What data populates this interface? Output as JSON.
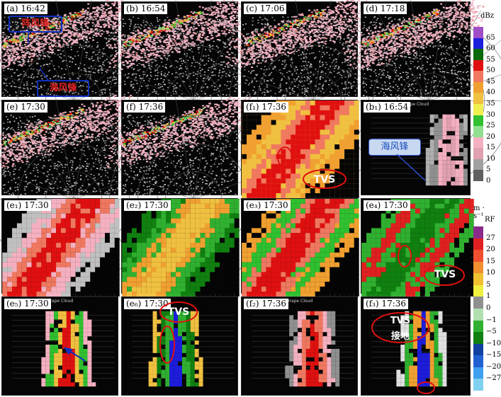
{
  "panels": [
    {
      "id": "a",
      "label": "(a) 16:42",
      "kind": "ppi"
    },
    {
      "id": "b",
      "label": "(b) 16:54",
      "kind": "ppi"
    },
    {
      "id": "c",
      "label": "(c) 17:06",
      "kind": "ppi"
    },
    {
      "id": "d",
      "label": "(d) 17:18",
      "kind": "ppi"
    },
    {
      "id": "e",
      "label": "(e) 17:30",
      "kind": "ppi"
    },
    {
      "id": "f",
      "label": "(f) 17:36",
      "kind": "ppi"
    },
    {
      "id": "f1",
      "label": "(f₁) 17:36",
      "kind": "zoom-z"
    },
    {
      "id": "b1",
      "label": "(b₁) 16:54",
      "kind": "xsec",
      "title": "Drape Cloud"
    },
    {
      "id": "e1",
      "label": "(e₁) 17:30",
      "kind": "zoom-z"
    },
    {
      "id": "e2",
      "label": "(e₂) 17:30",
      "kind": "zoom-v"
    },
    {
      "id": "e3",
      "label": "(e₃) 17:30",
      "kind": "zoom-z"
    },
    {
      "id": "e4",
      "label": "(e₄) 17:30",
      "kind": "zoom-v"
    },
    {
      "id": "e5",
      "label": "(e₅) 17:30",
      "kind": "xsec",
      "title": "Drape Cloud"
    },
    {
      "id": "e6",
      "label": "(e₆) 17:30",
      "kind": "xsec-v"
    },
    {
      "id": "f2",
      "label": "(f₂) 17:36",
      "kind": "xsec",
      "title": "Drape Cloud"
    },
    {
      "id": "f3",
      "label": "(f₃) 17:36",
      "kind": "xsec-v"
    }
  ],
  "annotations": {
    "lake_front": "阵风锋",
    "sea_front": "海风锋",
    "sea_front_b1": "海风锋",
    "tvs": "TVS",
    "tvs_ground_1": "TVS",
    "tvs_ground_2": "接地"
  },
  "colorbar_z": {
    "unit": "dBz",
    "ticks": [
      "65",
      "60",
      "55",
      "50",
      "45",
      "40",
      "35",
      "30",
      "25",
      "20",
      "15",
      "10",
      "5",
      "0"
    ],
    "colors": [
      "#a04ec8",
      "#1d1ddc",
      "#0a6a0a",
      "#e01010",
      "#f07860",
      "#f0a030",
      "#f0c040",
      "#f0f050",
      "#30c030",
      "#90e090",
      "#f4b0c0",
      "#e0a0b0",
      "#a0a0a0",
      "#606060"
    ]
  },
  "colorbar_v": {
    "unit": "m · s⁻¹",
    "rf": "RF",
    "ticks": [
      "27",
      "20",
      "15",
      "10",
      "5",
      "1",
      "0",
      "−1",
      "−5",
      "−10",
      "−15",
      "−20",
      "−27"
    ],
    "colors": [
      "#8a2a8a",
      "#e02020",
      "#f05030",
      "#f09030",
      "#f0c030",
      "#f0f040",
      "#909090",
      "#b0e0b0",
      "#30b030",
      "#108010",
      "#1040a0",
      "#2060d0",
      "#40a0f0",
      "#80d0f0"
    ]
  }
}
